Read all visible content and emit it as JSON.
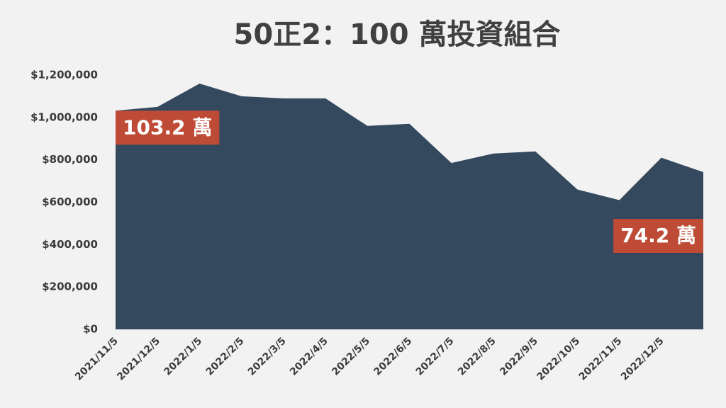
{
  "chart_data": {
    "type": "area",
    "title": "50正2：100 萬投資組合",
    "categories": [
      "2021/11/5",
      "2021/12/5",
      "2022/1/5",
      "2022/2/5",
      "2022/3/5",
      "2022/4/5",
      "2022/5/5",
      "2022/6/5",
      "2022/7/5",
      "2022/8/5",
      "2022/9/5",
      "2022/10/5",
      "2022/11/5",
      "2022/12/5",
      null
    ],
    "values": [
      1032000,
      1050000,
      1160000,
      1100000,
      1090000,
      1090000,
      960000,
      970000,
      785000,
      830000,
      840000,
      660000,
      610000,
      810000,
      742000
    ],
    "value_labels": [
      "103.2 萬",
      null,
      null,
      null,
      null,
      null,
      null,
      null,
      null,
      null,
      null,
      null,
      null,
      null,
      "74.2 萬"
    ],
    "color": "#34495e",
    "label_color": "#be4b36",
    "ylim": [
      0,
      1200000
    ],
    "yticks": [
      {
        "value": 0,
        "label": "$0"
      },
      {
        "value": 200000,
        "label": "$200,000"
      },
      {
        "value": 400000,
        "label": "$400,000"
      },
      {
        "value": 600000,
        "label": "$600,000"
      },
      {
        "value": 800000,
        "label": "$800,000"
      },
      {
        "value": 1000000,
        "label": "$1,000,000"
      },
      {
        "value": 1200000,
        "label": "$1,200,000"
      }
    ],
    "grid": false
  }
}
